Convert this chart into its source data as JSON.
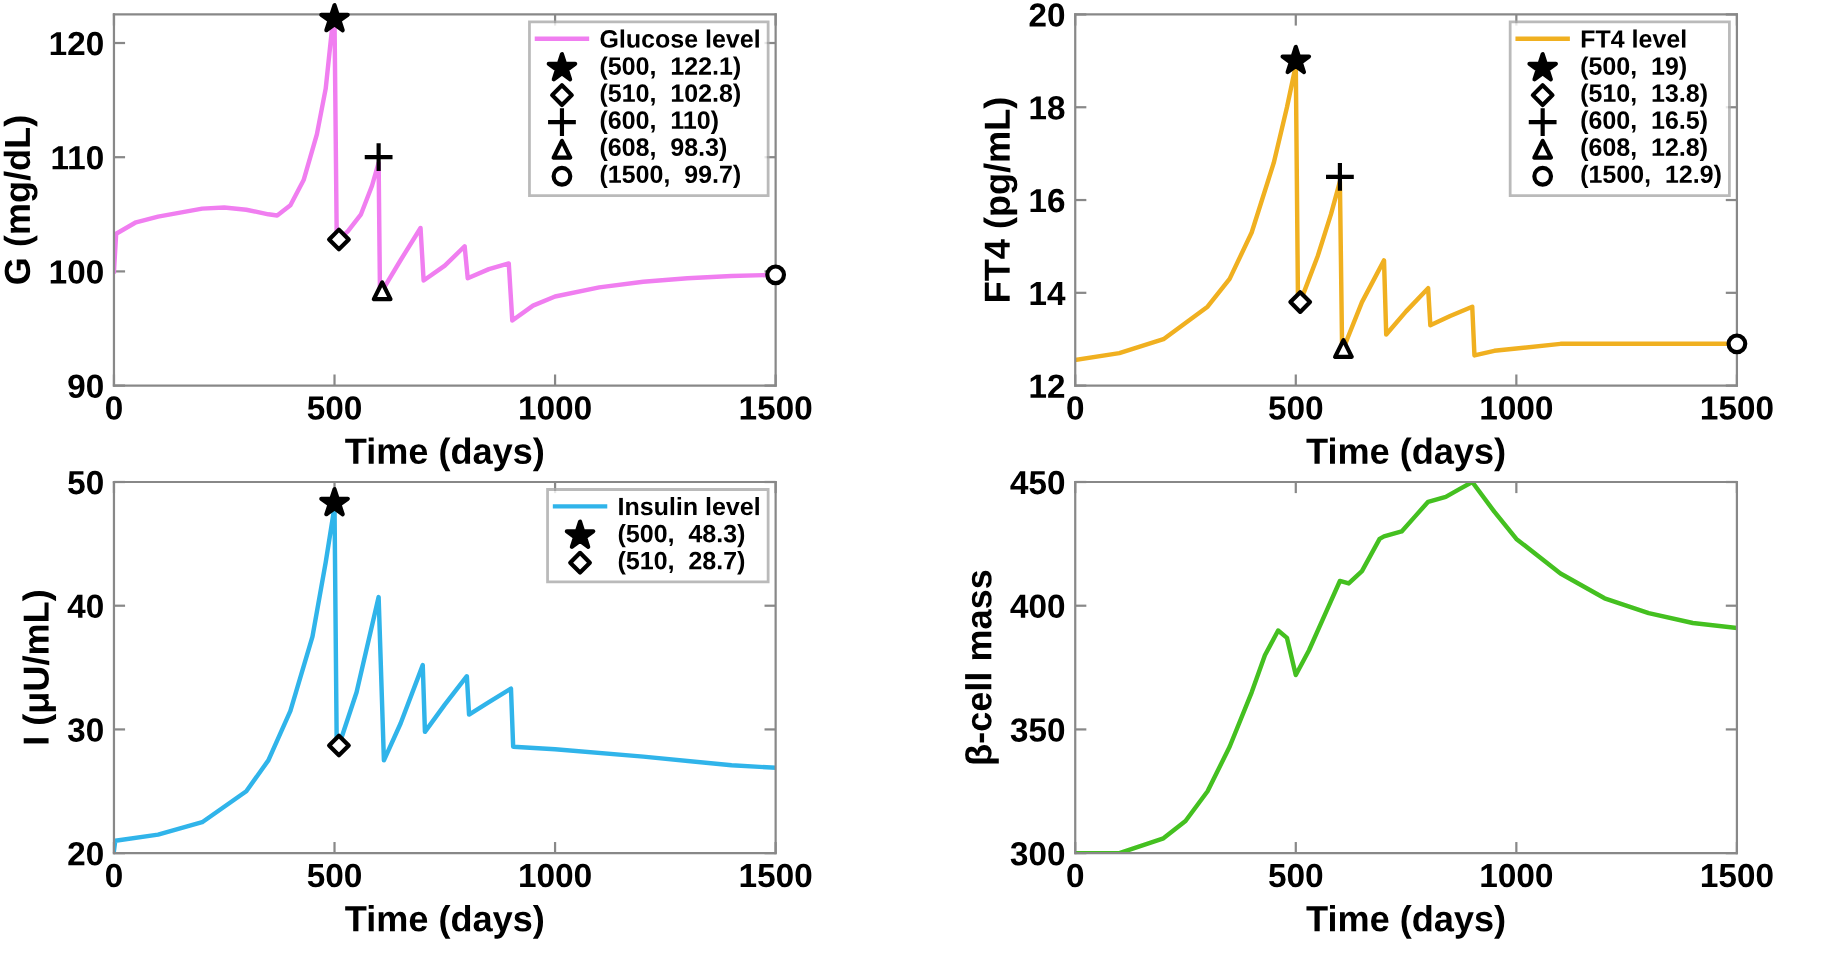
{
  "chart_data": [
    {
      "type": "line",
      "xlabel": "Time (days)",
      "ylabel": "G (mg/dL)",
      "xlim": [
        0,
        1500
      ],
      "ylim": [
        90,
        122.5
      ],
      "xticks": [
        0,
        500,
        1000,
        1500
      ],
      "yticks": [
        90,
        100,
        110,
        120
      ],
      "legend": "top right",
      "grid": false,
      "series": [
        {
          "name": "Glucose level",
          "color": "#f07ef0",
          "x": [
            0,
            5,
            50,
            100,
            200,
            250,
            300,
            350,
            370,
            400,
            430,
            460,
            480,
            495,
            500,
            505,
            510,
            530,
            560,
            585,
            600,
            603,
            608,
            650,
            695,
            702,
            750,
            795,
            802,
            850,
            895,
            903,
            950,
            1000,
            1100,
            1200,
            1300,
            1400,
            1500
          ],
          "values": [
            100,
            103.3,
            104.3,
            104.8,
            105.5,
            105.6,
            105.4,
            105.0,
            104.9,
            105.8,
            108,
            112,
            116,
            121.5,
            122.1,
            103,
            102.8,
            103.5,
            105,
            107.5,
            109.5,
            98.3,
            98.3,
            101,
            103.8,
            99.2,
            100.5,
            102.2,
            99.4,
            100.2,
            100.7,
            95.7,
            97,
            97.8,
            98.6,
            99.1,
            99.4,
            99.6,
            99.7
          ]
        },
        {
          "type": "scatter",
          "name": "(500,  122.1)",
          "color": "#000000",
          "marker": "star",
          "x": [
            500
          ],
          "values": [
            122.1
          ]
        },
        {
          "type": "scatter",
          "name": "(510,  102.8)",
          "color": "#000000",
          "marker": "diamond",
          "x": [
            510
          ],
          "values": [
            102.8
          ]
        },
        {
          "type": "scatter",
          "name": "(600,  110)",
          "color": "#000000",
          "marker": "cross",
          "x": [
            600
          ],
          "values": [
            110
          ]
        },
        {
          "type": "scatter",
          "name": "(608,  98.3)",
          "color": "#000000",
          "marker": "triangle",
          "x": [
            608
          ],
          "values": [
            98.3
          ]
        },
        {
          "type": "scatter",
          "name": "(1500,  99.7)",
          "color": "#000000",
          "marker": "circle",
          "x": [
            1500
          ],
          "values": [
            99.7
          ]
        }
      ]
    },
    {
      "type": "line",
      "xlabel": "Time (days)",
      "ylabel": "FT4 (pg/mL)",
      "xlim": [
        0,
        1500
      ],
      "ylim": [
        12,
        20
      ],
      "xticks": [
        0,
        500,
        1000,
        1500
      ],
      "yticks": [
        12,
        14,
        16,
        18,
        20
      ],
      "legend": "top right",
      "grid": false,
      "series": [
        {
          "name": "FT4 level",
          "color": "#f0b020",
          "x": [
            0,
            100,
            200,
            300,
            350,
            400,
            450,
            480,
            500,
            505,
            510,
            550,
            580,
            600,
            605,
            608,
            650,
            700,
            705,
            750,
            800,
            805,
            850,
            900,
            905,
            950,
            1000,
            1100,
            1500
          ],
          "values": [
            12.55,
            12.7,
            13.0,
            13.7,
            14.3,
            15.3,
            16.8,
            18.0,
            18.9,
            13.8,
            13.8,
            14.8,
            15.7,
            16.4,
            12.8,
            12.8,
            13.8,
            14.7,
            13.1,
            13.6,
            14.1,
            13.3,
            13.5,
            13.7,
            12.65,
            12.75,
            12.8,
            12.9,
            12.9
          ]
        },
        {
          "type": "scatter",
          "name": "(500,  19)",
          "color": "#000000",
          "marker": "star",
          "x": [
            500
          ],
          "values": [
            19
          ]
        },
        {
          "type": "scatter",
          "name": "(510,  13.8)",
          "color": "#000000",
          "marker": "diamond",
          "x": [
            510
          ],
          "values": [
            13.8
          ]
        },
        {
          "type": "scatter",
          "name": "(600,  16.5)",
          "color": "#000000",
          "marker": "cross",
          "x": [
            600
          ],
          "values": [
            16.5
          ]
        },
        {
          "type": "scatter",
          "name": "(608,  12.8)",
          "color": "#000000",
          "marker": "triangle",
          "x": [
            608
          ],
          "values": [
            12.8
          ]
        },
        {
          "type": "scatter",
          "name": "(1500,  12.9)",
          "color": "#000000",
          "marker": "circle",
          "x": [
            1500
          ],
          "values": [
            12.9
          ]
        }
      ]
    },
    {
      "type": "line",
      "xlabel": "Time (days)",
      "ylabel": "I (μU/mL)",
      "xlim": [
        0,
        1500
      ],
      "ylim": [
        20,
        50
      ],
      "xticks": [
        0,
        500,
        1000,
        1500
      ],
      "yticks": [
        20,
        30,
        40,
        50
      ],
      "legend": "top right",
      "grid": false,
      "series": [
        {
          "name": "Insulin level",
          "color": "#30b4ea",
          "x": [
            0,
            3,
            100,
            200,
            300,
            350,
            400,
            450,
            480,
            500,
            505,
            510,
            550,
            600,
            612,
            650,
            700,
            705,
            750,
            800,
            805,
            850,
            900,
            905,
            1000,
            1200,
            1400,
            1500
          ],
          "values": [
            20.2,
            21,
            21.5,
            22.5,
            25,
            27.5,
            31.5,
            37.5,
            43.5,
            48,
            28.7,
            28.7,
            33,
            40.7,
            27.5,
            30.5,
            35.2,
            29.8,
            32,
            34.3,
            31.2,
            32.2,
            33.3,
            28.6,
            28.4,
            27.8,
            27.1,
            26.9
          ]
        },
        {
          "type": "scatter",
          "name": "(500,  48.3)",
          "color": "#000000",
          "marker": "star",
          "x": [
            500
          ],
          "values": [
            48.3
          ]
        },
        {
          "type": "scatter",
          "name": "(510,  28.7)",
          "color": "#000000",
          "marker": "diamond",
          "x": [
            510
          ],
          "values": [
            28.7
          ]
        }
      ]
    },
    {
      "type": "line",
      "xlabel": "Time (days)",
      "ylabel": "β-cell mass",
      "xlim": [
        0,
        1500
      ],
      "ylim": [
        300,
        450
      ],
      "xticks": [
        0,
        500,
        1000,
        1500
      ],
      "yticks": [
        300,
        350,
        400,
        450
      ],
      "grid": false,
      "series": [
        {
          "color": "#44c020",
          "x": [
            0,
            100,
            200,
            250,
            300,
            350,
            400,
            430,
            460,
            480,
            500,
            530,
            570,
            600,
            620,
            650,
            690,
            700,
            740,
            770,
            800,
            840,
            870,
            900,
            950,
            1000,
            1100,
            1200,
            1300,
            1400,
            1500
          ],
          "values": [
            300,
            300,
            306,
            313,
            325,
            343,
            365,
            380,
            390,
            387,
            372,
            382,
            398,
            410,
            409,
            414,
            427,
            428,
            430,
            436,
            442,
            444,
            447,
            450,
            438,
            427,
            413,
            403,
            397,
            393,
            391
          ]
        }
      ]
    }
  ]
}
